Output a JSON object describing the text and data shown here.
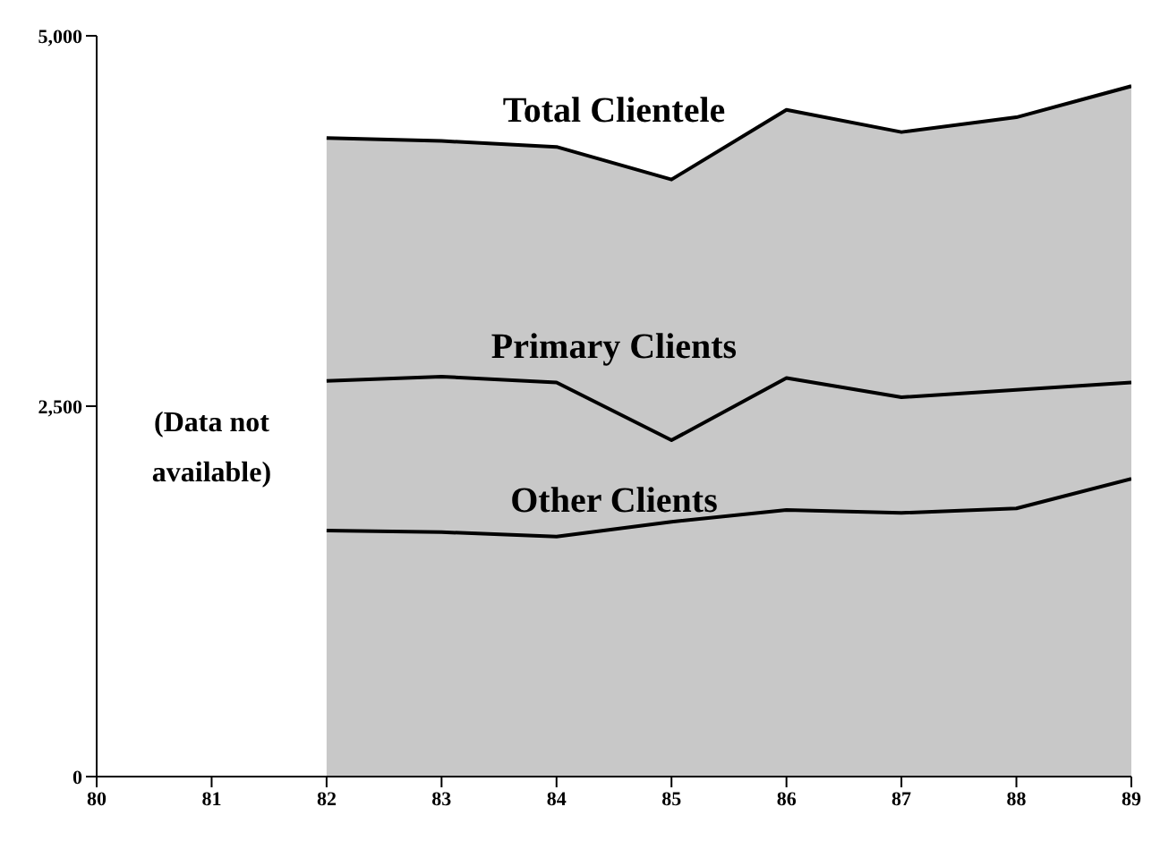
{
  "chart_data": {
    "type": "line",
    "x": [
      82,
      83,
      84,
      85,
      86,
      87,
      88,
      89
    ],
    "series": [
      {
        "name": "Total Clientele",
        "type": "area",
        "color": "#c8c8c8",
        "values": [
          4310,
          4290,
          4250,
          4030,
          4500,
          4350,
          4450,
          4660
        ]
      },
      {
        "name": "Primary Clients",
        "color": "#000000",
        "values": [
          2670,
          2700,
          2660,
          2270,
          2690,
          2560,
          2610,
          2660
        ]
      },
      {
        "name": "Other Clients",
        "color": "#000000",
        "values": [
          1660,
          1650,
          1620,
          1720,
          1800,
          1780,
          1810,
          2010
        ]
      }
    ],
    "xlim": [
      80,
      89
    ],
    "xticks": [
      80,
      81,
      82,
      83,
      84,
      85,
      86,
      87,
      88,
      89
    ],
    "ylim": [
      0,
      5000
    ],
    "yticks": [
      0,
      {
        "value": 2500,
        "label": "2,500"
      },
      {
        "value": 5000,
        "label": "5,000"
      }
    ],
    "annotations": [
      "(Data not available)"
    ],
    "marker": "none"
  }
}
